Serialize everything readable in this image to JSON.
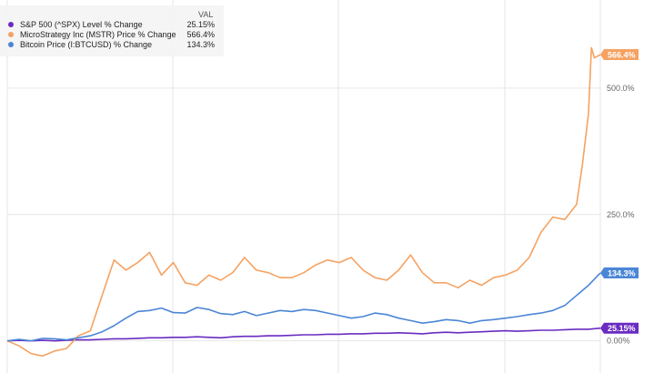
{
  "chart_data": {
    "type": "line",
    "title": "",
    "xlabel": "",
    "ylabel": "",
    "ylim": [
      -60,
      660
    ],
    "y_ticks": [
      {
        "value": 0,
        "label": "0.00%"
      },
      {
        "value": 250,
        "label": "250.0%"
      },
      {
        "value": 500,
        "label": "500.0%"
      }
    ],
    "grid": true,
    "legend_position": "top-left",
    "legend_header": "VAL",
    "series": [
      {
        "name": "S&P 500 (^SPX) Level % Change",
        "legend_value": "25.15%",
        "end_label": "25.15%",
        "end_value": 25.15,
        "color": "#6a2bc1",
        "marker": "dot",
        "x": [
          0,
          0.02,
          0.04,
          0.06,
          0.08,
          0.1,
          0.12,
          0.14,
          0.16,
          0.18,
          0.2,
          0.22,
          0.24,
          0.26,
          0.28,
          0.3,
          0.32,
          0.34,
          0.36,
          0.38,
          0.4,
          0.42,
          0.44,
          0.46,
          0.48,
          0.5,
          0.52,
          0.54,
          0.56,
          0.58,
          0.6,
          0.62,
          0.64,
          0.66,
          0.68,
          0.7,
          0.72,
          0.74,
          0.76,
          0.78,
          0.8,
          0.82,
          0.84,
          0.86,
          0.88,
          0.9,
          0.92,
          0.94,
          0.96,
          0.98,
          1.0
        ],
        "y": [
          0,
          1,
          0,
          1,
          0,
          1,
          2,
          2,
          3,
          4,
          4,
          5,
          6,
          6,
          7,
          7,
          8,
          7,
          6,
          8,
          9,
          9,
          10,
          10,
          11,
          12,
          12,
          13,
          13,
          14,
          14,
          15,
          15,
          16,
          15,
          14,
          16,
          17,
          16,
          17,
          18,
          19,
          20,
          19,
          20,
          21,
          21,
          22,
          23,
          23,
          25.15
        ]
      },
      {
        "name": "MicroStrategy Inc (MSTR) Price % Change",
        "legend_value": "566.4%",
        "end_label": "566.4%",
        "end_value": 566.4,
        "color": "#f5a262",
        "marker": "dot",
        "x": [
          0,
          0.02,
          0.04,
          0.06,
          0.08,
          0.1,
          0.12,
          0.14,
          0.16,
          0.18,
          0.2,
          0.22,
          0.24,
          0.26,
          0.28,
          0.3,
          0.32,
          0.34,
          0.36,
          0.38,
          0.4,
          0.42,
          0.44,
          0.46,
          0.48,
          0.5,
          0.52,
          0.54,
          0.56,
          0.58,
          0.6,
          0.62,
          0.64,
          0.66,
          0.68,
          0.7,
          0.72,
          0.74,
          0.76,
          0.78,
          0.8,
          0.82,
          0.84,
          0.86,
          0.88,
          0.9,
          0.92,
          0.94,
          0.96,
          0.97,
          0.98,
          0.985,
          0.99,
          1.0
        ],
        "y": [
          0,
          -10,
          -25,
          -30,
          -20,
          -15,
          10,
          20,
          90,
          160,
          140,
          155,
          175,
          130,
          155,
          115,
          110,
          130,
          120,
          135,
          165,
          140,
          135,
          125,
          125,
          135,
          150,
          160,
          155,
          165,
          140,
          125,
          120,
          140,
          170,
          135,
          115,
          115,
          105,
          120,
          110,
          125,
          130,
          140,
          165,
          215,
          245,
          240,
          270,
          350,
          450,
          580,
          560,
          566.4
        ]
      },
      {
        "name": "Bitcoin Price (I:BTCUSD) % Change",
        "legend_value": "134.3%",
        "end_label": "134.3%",
        "end_value": 134.3,
        "color": "#4b86d6",
        "marker": "dot",
        "x": [
          0,
          0.02,
          0.04,
          0.06,
          0.08,
          0.1,
          0.12,
          0.14,
          0.16,
          0.18,
          0.2,
          0.22,
          0.24,
          0.26,
          0.28,
          0.3,
          0.32,
          0.34,
          0.36,
          0.38,
          0.4,
          0.42,
          0.44,
          0.46,
          0.48,
          0.5,
          0.52,
          0.54,
          0.56,
          0.58,
          0.6,
          0.62,
          0.64,
          0.66,
          0.68,
          0.7,
          0.72,
          0.74,
          0.76,
          0.78,
          0.8,
          0.82,
          0.84,
          0.86,
          0.88,
          0.9,
          0.92,
          0.94,
          0.96,
          0.98,
          1.0
        ],
        "y": [
          0,
          3,
          0,
          5,
          4,
          2,
          6,
          10,
          18,
          30,
          45,
          58,
          60,
          65,
          56,
          55,
          66,
          62,
          54,
          52,
          58,
          50,
          55,
          60,
          58,
          62,
          60,
          55,
          50,
          45,
          48,
          55,
          52,
          45,
          40,
          35,
          38,
          42,
          40,
          35,
          40,
          42,
          45,
          48,
          52,
          55,
          60,
          70,
          90,
          110,
          134.3
        ]
      }
    ]
  }
}
